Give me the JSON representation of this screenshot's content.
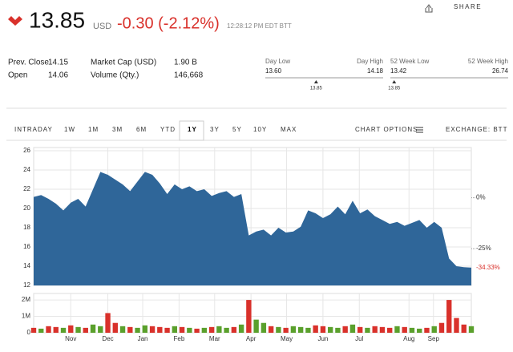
{
  "quote": {
    "price": "13.85",
    "currency": "USD",
    "change": "-0.30 (-2.12%)",
    "time": "12:28:12 PM EDT BTT",
    "share": "SHARE"
  },
  "stats": [
    [
      {
        "label": "Prev. Close",
        "value": "14.15"
      },
      {
        "label": "Open",
        "value": "14.06"
      }
    ],
    [
      {
        "label": "Market Cap (USD)",
        "value": "1.90 B"
      },
      {
        "label": "Volume (Qty.)",
        "value": "146,668"
      }
    ]
  ],
  "ranges": [
    {
      "low_label": "Day Low",
      "high_label": "Day High",
      "low": "13.60",
      "high": "14.18",
      "current": "13.85"
    },
    {
      "low_label": "52 Week Low",
      "high_label": "52 Week High",
      "low": "13.42",
      "high": "26.74",
      "current": "13.85"
    }
  ],
  "tabs": [
    "INTRADAY",
    "1W",
    "1M",
    "3M",
    "6M",
    "YTD",
    "1Y",
    "3Y",
    "5Y",
    "10Y",
    "MAX"
  ],
  "selected_tab_index": 6,
  "chart_options": "CHART OPTIONS",
  "exchange": "EXCHANGE: BTT",
  "chart_data": [
    {
      "type": "area",
      "color": "#2f6699",
      "xlim": [
        0,
        59
      ],
      "ylim": [
        12,
        26
      ],
      "yticks": [
        12,
        14,
        16,
        18,
        20,
        22,
        24,
        26
      ],
      "y2lim": [
        -43.1,
        23.1
      ],
      "y2ticks": [
        {
          "value": 0,
          "label": "0%"
        },
        {
          "value": -25,
          "label": "-25%"
        }
      ],
      "last_label": {
        "value": -34.33,
        "label": "-34.33%",
        "color": "#d9312b"
      },
      "values": [
        21.2,
        21.4,
        21.0,
        20.5,
        19.8,
        20.6,
        21.0,
        20.2,
        22.0,
        23.8,
        23.5,
        23.0,
        22.5,
        21.8,
        22.8,
        23.8,
        23.5,
        22.6,
        21.5,
        22.5,
        22.0,
        22.3,
        21.8,
        22.0,
        21.3,
        21.6,
        21.8,
        21.2,
        21.5,
        17.2,
        17.6,
        17.8,
        17.2,
        18.0,
        17.5,
        17.6,
        18.1,
        19.8,
        19.5,
        19.0,
        19.4,
        20.2,
        19.4,
        20.8,
        19.5,
        19.9,
        19.2,
        18.8,
        18.4,
        18.6,
        18.2,
        18.5,
        18.8,
        18.0,
        18.6,
        18.0,
        14.8,
        14.0,
        13.9,
        13.85
      ]
    },
    {
      "type": "bar",
      "xlim": [
        0,
        59
      ],
      "ylim": [
        0,
        2200000
      ],
      "yticks": [
        0,
        {
          "value": 1000000,
          "label": "1M"
        },
        {
          "value": 2000000,
          "label": "2M"
        }
      ],
      "xticks": [
        {
          "value": 5,
          "label": "Nov"
        },
        {
          "value": 10,
          "label": "Dec"
        },
        {
          "value": 14.7,
          "label": "Jan"
        },
        {
          "value": 19.6,
          "label": "Feb"
        },
        {
          "value": 24.4,
          "label": "Mar"
        },
        {
          "value": 29.3,
          "label": "Apr"
        },
        {
          "value": 34.1,
          "label": "May"
        },
        {
          "value": 39,
          "label": "Jun"
        },
        {
          "value": 43.9,
          "label": "Jul"
        },
        {
          "value": 50.6,
          "label": "Aug"
        },
        {
          "value": 53.9,
          "label": "Sep"
        }
      ],
      "values": [
        300000,
        250000,
        400000,
        350000,
        300000,
        450000,
        350000,
        300000,
        500000,
        400000,
        1200000,
        600000,
        400000,
        350000,
        300000,
        450000,
        400000,
        350000,
        300000,
        400000,
        350000,
        300000,
        250000,
        300000,
        350000,
        400000,
        300000,
        350000,
        500000,
        2000000,
        800000,
        600000,
        400000,
        350000,
        300000,
        400000,
        350000,
        300000,
        450000,
        400000,
        350000,
        300000,
        400000,
        500000,
        350000,
        300000,
        400000,
        350000,
        300000,
        400000,
        350000,
        300000,
        250000,
        300000,
        400000,
        600000,
        2000000,
        900000,
        500000,
        400000
      ],
      "colors": [
        "#d9312b",
        "#5aa02c",
        "#d9312b",
        "#d9312b",
        "#5aa02c",
        "#d9312b",
        "#5aa02c",
        "#d9312b",
        "#5aa02c",
        "#5aa02c",
        "#d9312b",
        "#d9312b",
        "#5aa02c",
        "#d9312b",
        "#5aa02c",
        "#5aa02c",
        "#d9312b",
        "#d9312b",
        "#d9312b",
        "#5aa02c",
        "#d9312b",
        "#5aa02c",
        "#d9312b",
        "#5aa02c",
        "#d9312b",
        "#5aa02c",
        "#5aa02c",
        "#d9312b",
        "#5aa02c",
        "#d9312b",
        "#5aa02c",
        "#5aa02c",
        "#d9312b",
        "#5aa02c",
        "#d9312b",
        "#5aa02c",
        "#5aa02c",
        "#5aa02c",
        "#d9312b",
        "#d9312b",
        "#5aa02c",
        "#5aa02c",
        "#d9312b",
        "#5aa02c",
        "#d9312b",
        "#5aa02c",
        "#d9312b",
        "#d9312b",
        "#d9312b",
        "#5aa02c",
        "#d9312b",
        "#5aa02c",
        "#5aa02c",
        "#d9312b",
        "#5aa02c",
        "#d9312b",
        "#d9312b",
        "#d9312b",
        "#d9312b",
        "#5aa02c"
      ]
    }
  ]
}
